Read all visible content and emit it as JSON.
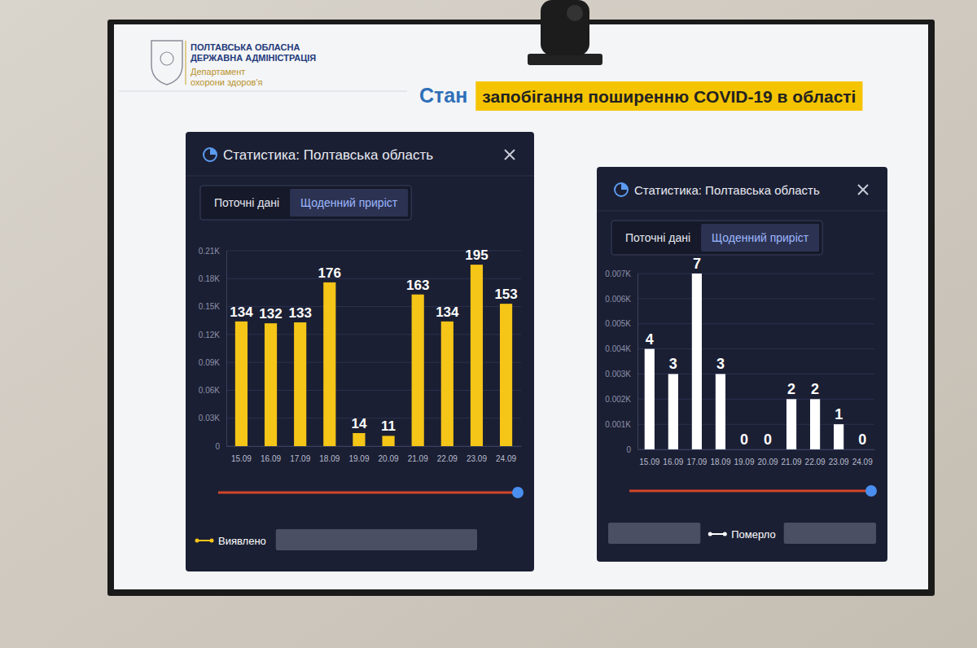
{
  "header": {
    "org": [
      "ПОЛТАВСЬКА ОБЛАСНА",
      "ДЕРЖАВНА АДМІНІСТРАЦІЯ"
    ],
    "department": [
      "Департамент",
      "охорони здоров'я"
    ],
    "title_lead": "Стан",
    "title": "запобігання поширенню COVID-19 в області"
  },
  "chart_data": [
    {
      "type": "bar",
      "title": "Статистика: Полтавська область",
      "tabs": [
        "Поточні дані",
        "Щоденний приріст"
      ],
      "categories": [
        "15.09",
        "16.09",
        "17.09",
        "18.09",
        "19.09",
        "20.09",
        "21.09",
        "22.09",
        "23.09",
        "24.09"
      ],
      "series": [
        {
          "name": "Виявлено",
          "color": "#f5c518",
          "values": [
            134,
            132,
            133,
            176,
            14,
            11,
            163,
            134,
            195,
            153
          ]
        }
      ],
      "ylim": [
        0,
        210
      ],
      "yticks": [
        0,
        {
          "value": 30,
          "label": "0.03K"
        },
        {
          "value": 60,
          "label": "0.06K"
        },
        {
          "value": 90,
          "label": "0.09K"
        },
        {
          "value": 120,
          "label": "0.12K"
        },
        {
          "value": 150,
          "label": "0.15K"
        },
        {
          "value": 180,
          "label": "0.18K"
        },
        {
          "value": 210,
          "label": "0.21K"
        }
      ],
      "grid": true,
      "data_labels": true,
      "legend": "bottom-left"
    },
    {
      "type": "bar",
      "title": "Статистика: Полтавська область",
      "tabs": [
        "Поточні дані",
        "Щоденний приріст"
      ],
      "categories": [
        "15.09",
        "16.09",
        "17.09",
        "18.09",
        "19.09",
        "20.09",
        "21.09",
        "22.09",
        "23.09",
        "24.09"
      ],
      "series": [
        {
          "name": "Померло",
          "color": "#ffffff",
          "values": [
            4,
            3,
            7,
            3,
            0,
            0,
            2,
            2,
            1,
            0
          ]
        }
      ],
      "ylim": [
        0,
        7
      ],
      "yticks": [
        0,
        {
          "value": 1,
          "label": "0.001K"
        },
        {
          "value": 2,
          "label": "0.002K"
        },
        {
          "value": 3,
          "label": "0.003K"
        },
        {
          "value": 4,
          "label": "0.004K"
        },
        {
          "value": 5,
          "label": "0.005K"
        },
        {
          "value": 6,
          "label": "0.006K"
        },
        {
          "value": 7,
          "label": "0.007K"
        }
      ],
      "grid": true,
      "data_labels": true,
      "legend": "bottom"
    }
  ]
}
